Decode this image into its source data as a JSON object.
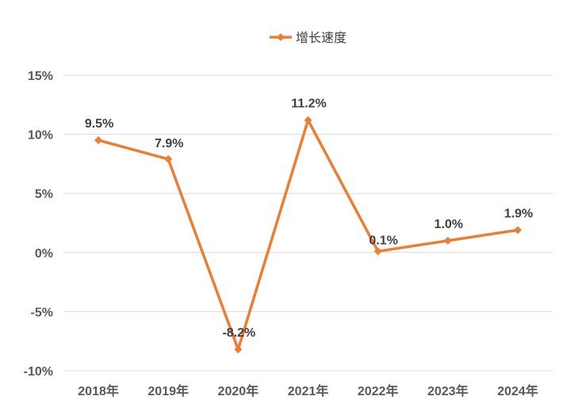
{
  "chart_data": {
    "type": "line",
    "categories": [
      "2018年",
      "2019年",
      "2020年",
      "2021年",
      "2022年",
      "2023年",
      "2024年"
    ],
    "series": [
      {
        "name": "增长速度",
        "values": [
          9.5,
          7.9,
          -8.2,
          11.2,
          0.1,
          1.0,
          1.9
        ],
        "data_labels": [
          "9.5%",
          "7.9%",
          "-8.2%",
          "11.2%",
          "0.1%",
          "1.0%",
          "1.9%"
        ],
        "color": "#ED7D31",
        "marker": "diamond"
      }
    ],
    "y_ticks": [
      15,
      10,
      5,
      0,
      -5,
      -10
    ],
    "y_tick_labels": [
      "15%",
      "10%",
      "5%",
      "0%",
      "-5%",
      "-10%"
    ],
    "ylim": [
      -10,
      15
    ],
    "grid": true,
    "legend": "top-center"
  }
}
